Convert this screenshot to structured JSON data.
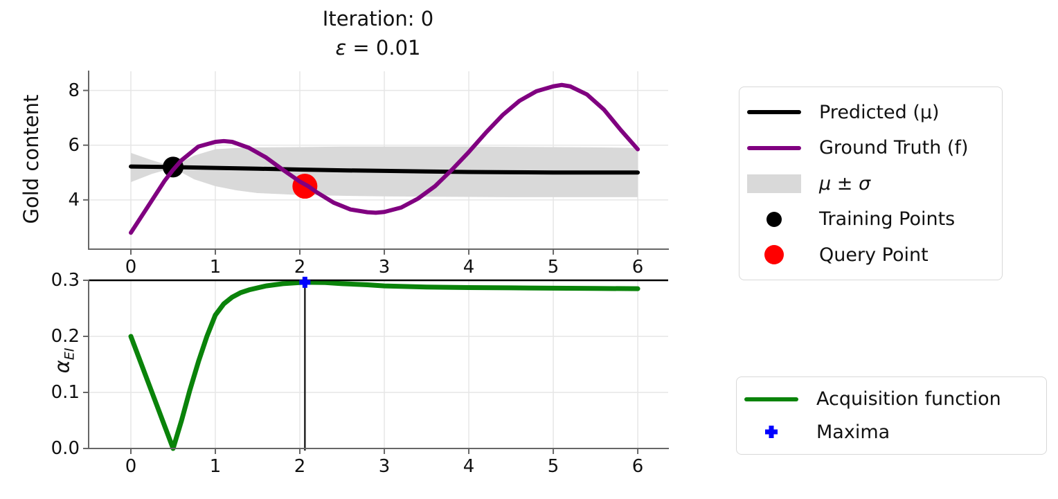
{
  "title": {
    "line1": "Iteration: 0",
    "eps_symbol": "ε",
    "eps_rest": " = 0.01"
  },
  "colors": {
    "predicted": "#000000",
    "ground_truth": "#800080",
    "band": "#d9d9d9",
    "acquisition": "#0a830a",
    "maxima": "#0000ff",
    "query": "#ff0000",
    "training": "#000000",
    "grid": "#e6e6e6",
    "spine": "#666666"
  },
  "chart_data": [
    {
      "type": "line",
      "title": "Iteration: 0\nε = 0.01",
      "xlabel": "",
      "ylabel": "Gold content",
      "xlim": [
        -0.5,
        6.36
      ],
      "ylim": [
        2.2,
        8.7
      ],
      "grid": true,
      "xticks": [
        0,
        1,
        2,
        3,
        4,
        5,
        6
      ],
      "xtick_labels": [
        "0",
        "1",
        "2",
        "3",
        "4",
        "5",
        "6"
      ],
      "yticks": [
        4,
        6,
        8
      ],
      "ytick_labels": [
        "4",
        "6",
        "8"
      ],
      "band": {
        "name": "μ ± σ",
        "color": "#d9d9d9",
        "x": [
          0,
          0.25,
          0.5,
          0.75,
          1.0,
          1.25,
          1.5,
          2.0,
          2.5,
          3.0,
          3.5,
          4.0,
          4.5,
          5.0,
          5.5,
          6.0
        ],
        "upper": [
          5.72,
          5.45,
          5.22,
          5.62,
          5.85,
          5.9,
          5.92,
          5.93,
          5.95,
          5.95,
          5.95,
          5.95,
          5.94,
          5.93,
          5.92,
          5.9
        ],
        "lower": [
          4.65,
          4.95,
          5.17,
          4.75,
          4.5,
          4.35,
          4.25,
          4.18,
          4.15,
          4.13,
          4.12,
          4.11,
          4.1,
          4.1,
          4.1,
          4.1
        ]
      },
      "series": [
        {
          "name": "Predicted (μ)",
          "color": "#000000",
          "width": 6,
          "x": [
            0,
            0.5,
            1,
            1.5,
            2,
            2.5,
            3,
            3.5,
            4,
            4.5,
            5,
            5.5,
            6
          ],
          "y": [
            5.22,
            5.2,
            5.17,
            5.14,
            5.11,
            5.08,
            5.06,
            5.04,
            5.02,
            5.01,
            5.0,
            5.0,
            5.0
          ]
        },
        {
          "name": "Ground Truth (f)",
          "color": "#800080",
          "width": 6,
          "x": [
            0,
            0.2,
            0.4,
            0.5,
            0.6,
            0.8,
            1.0,
            1.1,
            1.2,
            1.4,
            1.6,
            1.8,
            2.0,
            2.1,
            2.2,
            2.4,
            2.6,
            2.8,
            2.9,
            3.0,
            3.2,
            3.4,
            3.6,
            3.8,
            4.0,
            4.2,
            4.4,
            4.6,
            4.8,
            5.0,
            5.1,
            5.2,
            5.4,
            5.6,
            5.8,
            6.0
          ],
          "y": [
            2.8,
            3.75,
            4.7,
            5.1,
            5.45,
            5.95,
            6.12,
            6.15,
            6.12,
            5.9,
            5.55,
            5.1,
            4.67,
            4.5,
            4.28,
            3.9,
            3.65,
            3.55,
            3.53,
            3.56,
            3.72,
            4.05,
            4.5,
            5.1,
            5.75,
            6.45,
            7.1,
            7.62,
            7.97,
            8.15,
            8.2,
            8.15,
            7.85,
            7.3,
            6.55,
            5.85
          ]
        }
      ],
      "points": [
        {
          "name": "Training Points",
          "color": "#000000",
          "r": 15,
          "x": 0.5,
          "y": 5.2
        },
        {
          "name": "Query Point",
          "color": "#ff0000",
          "r": 18,
          "x": 2.06,
          "y": 4.5
        }
      ]
    },
    {
      "type": "line",
      "title": "",
      "xlabel": "",
      "ylabel": "α_EI",
      "ylabel_main": "α",
      "ylabel_sub": "EI",
      "xlim": [
        -0.5,
        6.36
      ],
      "ylim": [
        0,
        0.3
      ],
      "grid": true,
      "xticks": [
        0,
        1,
        2,
        3,
        4,
        5,
        6
      ],
      "xtick_labels": [
        "0",
        "1",
        "2",
        "3",
        "4",
        "5",
        "6"
      ],
      "yticks": [
        0,
        0.1,
        0.2,
        0.3
      ],
      "ytick_labels": [
        "0.0",
        "0.1",
        "0.2",
        "0.3"
      ],
      "series": [
        {
          "name": "Acquisition function",
          "color": "#0a830a",
          "width": 7,
          "x": [
            0,
            0.1,
            0.2,
            0.3,
            0.4,
            0.5,
            0.6,
            0.7,
            0.8,
            0.9,
            1.0,
            1.1,
            1.2,
            1.3,
            1.4,
            1.6,
            1.8,
            2.0,
            2.06,
            2.3,
            2.5,
            2.8,
            3.0,
            3.5,
            4.0,
            4.5,
            5.0,
            5.5,
            6.0
          ],
          "y": [
            0.2,
            0.16,
            0.12,
            0.08,
            0.04,
            0.0,
            0.05,
            0.105,
            0.155,
            0.2,
            0.238,
            0.258,
            0.27,
            0.278,
            0.283,
            0.29,
            0.294,
            0.296,
            0.2965,
            0.296,
            0.294,
            0.292,
            0.29,
            0.288,
            0.287,
            0.2865,
            0.286,
            0.2855,
            0.285
          ]
        }
      ],
      "top_line_y": 0.3,
      "maxima": {
        "name": "Maxima",
        "marker": "plus",
        "color": "#0000ff",
        "x": 2.06,
        "y": 0.2965
      }
    }
  ],
  "legends": [
    {
      "position": "outside upper right",
      "items": [
        {
          "label": "Predicted (μ)",
          "sample": "line",
          "color": "#000000"
        },
        {
          "label": "Ground Truth (f)",
          "sample": "line",
          "color": "#800080"
        },
        {
          "label": "μ ± σ",
          "sample": "patch",
          "color": "#d9d9d9",
          "italic": true
        },
        {
          "label": "Training Points",
          "sample": "dot",
          "color": "#000000",
          "size": 22
        },
        {
          "label": "Query Point",
          "sample": "dot",
          "color": "#ff0000",
          "size": 28
        }
      ]
    },
    {
      "position": "outside lower right",
      "items": [
        {
          "label": "Acquisition function",
          "sample": "line",
          "color": "#0a830a"
        },
        {
          "label": "Maxima",
          "sample": "plus",
          "color": "#0000ff"
        }
      ]
    }
  ]
}
